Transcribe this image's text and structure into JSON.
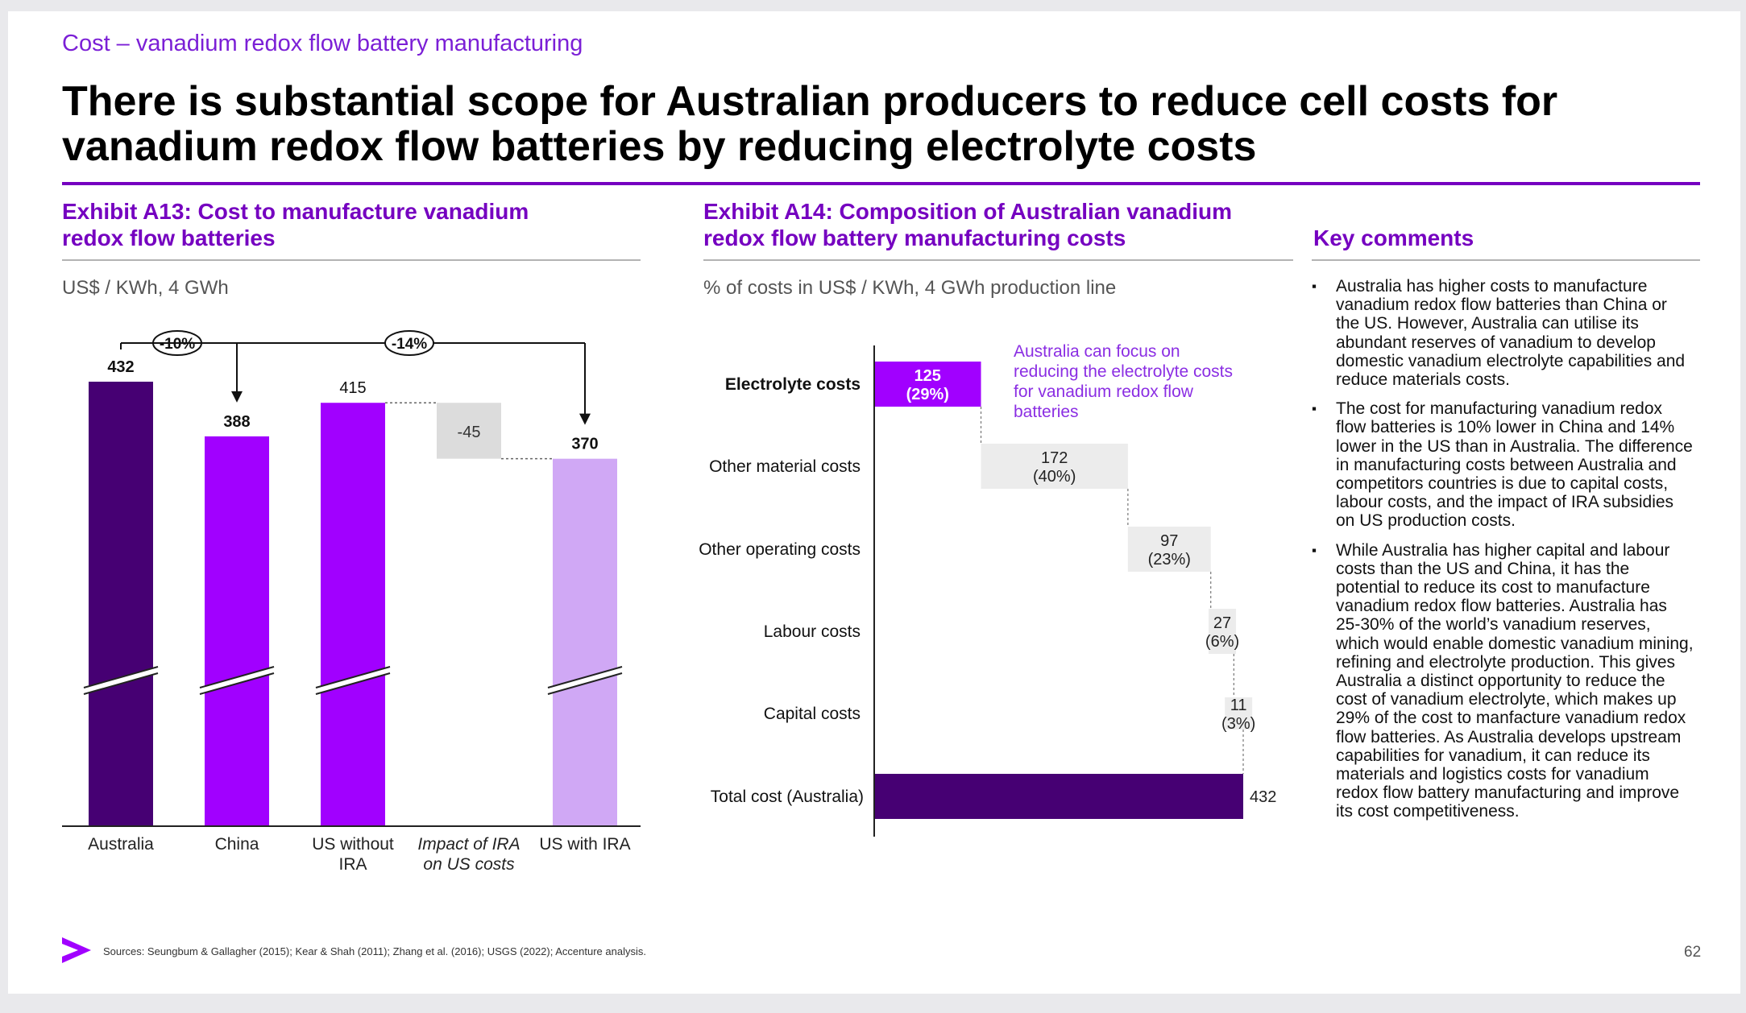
{
  "header": {
    "eyebrow": "Cost – vanadium redox flow battery manufacturing",
    "title": "There is substantial scope for Australian producers to reduce cell costs for vanadium redox flow batteries by reducing electrolyte costs"
  },
  "exhibit_a13": {
    "title": "Exhibit A13: Cost to manufacture vanadium redox flow batteries",
    "subtitle": "US$ / KWh, 4 GWh"
  },
  "exhibit_a14": {
    "title": "Exhibit A14: Composition of Australian vanadium redox flow battery manufacturing costs",
    "subtitle": "% of costs in US$ / KWh, 4 GWh production line",
    "annotation": "Australia can focus on reducing the electrolyte costs for vanadium redox flow batteries"
  },
  "key_comments": {
    "title": "Key comments",
    "items": [
      "Australia has higher costs to manufacture vanadium redox flow batteries than China or the US. However, Australia can utilise its abundant reserves of vanadium to develop domestic vanadium electrolyte capabilities and reduce materials costs.",
      "The cost for manufacturing vanadium redox flow batteries is 10% lower in China and 14% lower in the US than in Australia. The difference in manufacturing costs between Australia and competitors countries is due to capital costs, labour costs, and the impact of IRA subsidies on US production costs.",
      "While Australia has higher capital and labour costs than the US and China, it has the potential to reduce its cost to manufacture vanadium redox flow batteries. Australia has 25-30% of the world’s vanadium reserves, which would enable domestic vanadium mining, refining and electrolyte production. This gives Australia a distinct opportunity to reduce the cost of vanadium electrolyte, which makes up 29% of the cost to manfacture vanadium redox flow batteries. As Australia develops upstream capabilities for vanadium, it can reduce its materials and logistics costs for vanadium redox flow battery manufacturing and improve its cost competitiveness."
    ]
  },
  "footer": {
    "sources": "Sources: Seungbum & Gallagher (2015); Kear & Shah (2011); Zhang et al. (2016); USGS (2022); Accenture analysis.",
    "page_number": "62"
  },
  "colors": {
    "dark_purple": "#460073",
    "purple": "#a100ff",
    "light_purple": "#d0a8f5",
    "grey": "#dcdcdc",
    "accent": "#7500c0"
  },
  "chart_data": [
    {
      "type": "bar",
      "subtype": "waterfall",
      "categories": [
        "Australia",
        "China",
        "US without IRA",
        "Impact of IRA on US costs",
        "US with IRA"
      ],
      "values": [
        432,
        388,
        415,
        -45,
        370
      ],
      "value_labels": [
        "432",
        "388",
        "415",
        "-45",
        "370"
      ],
      "bar_kinds": [
        "total",
        "total",
        "total",
        "delta",
        "total"
      ],
      "bar_colors": [
        "#460073",
        "#a100ff",
        "#a100ff",
        "#dcdcdc",
        "#d0a8f5"
      ],
      "axis_break": true,
      "comparisons": [
        {
          "from": "Australia",
          "to": "China",
          "label": "-10%"
        },
        {
          "from": "Australia",
          "to": "US with IRA",
          "label": "-14%"
        }
      ]
    },
    {
      "type": "bar",
      "subtype": "horizontal waterfall",
      "categories": [
        "Electrolyte costs",
        "Other material costs",
        "Other operating costs",
        "Labour costs",
        "Capital costs",
        "Total cost (Australia)"
      ],
      "values": [
        125,
        172,
        97,
        27,
        11,
        432
      ],
      "percent_labels": [
        "(29%)",
        "(40%)",
        "(23%)",
        "(6%)",
        "(3%)",
        ""
      ],
      "value_labels": [
        "125",
        "172",
        "97",
        "27",
        "11",
        "432"
      ],
      "highlight": "Electrolyte costs"
    }
  ]
}
